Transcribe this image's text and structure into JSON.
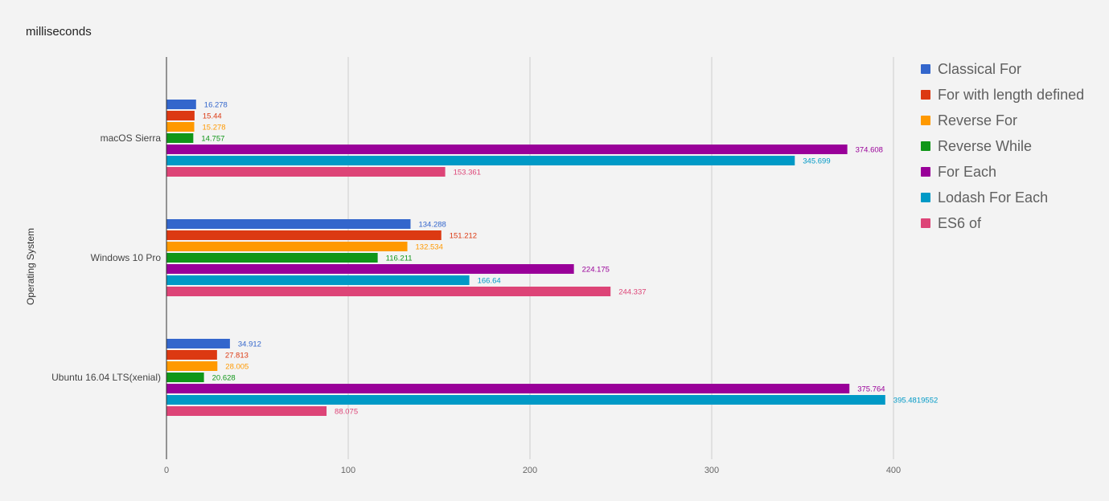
{
  "chart_data": {
    "type": "bar",
    "orientation": "horizontal",
    "title": "milliseconds",
    "xlabel": "",
    "ylabel": "Operating System",
    "xlim": [
      0,
      400
    ],
    "xticks": [
      0,
      100,
      200,
      300,
      400
    ],
    "grid": true,
    "legend_position": "right",
    "categories": [
      "macOS Sierra",
      "Windows 10 Pro",
      "Ubuntu 16.04 LTS(xenial)"
    ],
    "series": [
      {
        "name": "Classical For",
        "color": "#3366cc",
        "values": [
          16.278,
          134.288,
          34.912
        ],
        "labels": [
          "16.278",
          "134.288",
          "34.912"
        ]
      },
      {
        "name": "For with length defined",
        "color": "#dc3912",
        "values": [
          15.44,
          151.212,
          27.813
        ],
        "labels": [
          "15.44",
          "151.212",
          "27.813"
        ]
      },
      {
        "name": "Reverse For",
        "color": "#ff9900",
        "values": [
          15.278,
          132.534,
          28.005
        ],
        "labels": [
          "15.278",
          "132.534",
          "28.005"
        ]
      },
      {
        "name": "Reverse While",
        "color": "#109618",
        "values": [
          14.757,
          116.211,
          20.628
        ],
        "labels": [
          "14.757",
          "116.211",
          "20.628"
        ]
      },
      {
        "name": "For Each",
        "color": "#990099",
        "values": [
          374.608,
          224.175,
          375.764
        ],
        "labels": [
          "374.608",
          "224.175",
          "375.764"
        ]
      },
      {
        "name": "Lodash For Each",
        "color": "#0099c6",
        "values": [
          345.699,
          166.64,
          395.4819552
        ],
        "labels": [
          "345.699",
          "166.64",
          "395.4819552"
        ]
      },
      {
        "name": "ES6 of",
        "color": "#dd4477",
        "values": [
          153.361,
          244.337,
          88.075
        ],
        "labels": [
          "153.361",
          "244.337",
          "88.075"
        ]
      }
    ]
  }
}
